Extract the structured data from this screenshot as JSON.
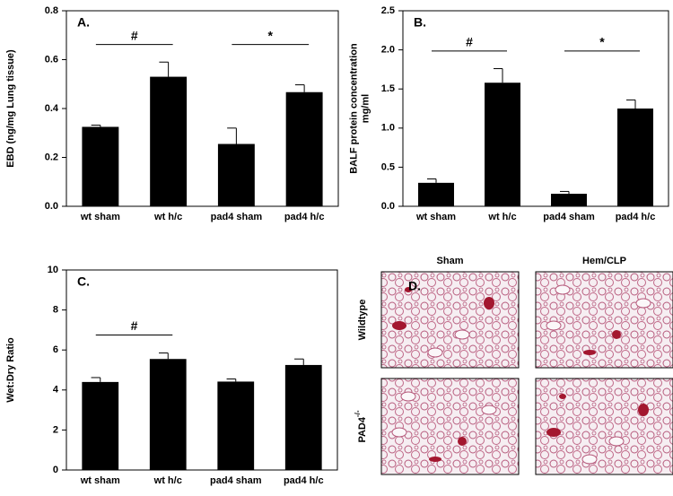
{
  "chart_data": [
    {
      "type": "bar",
      "panel_label": "A.",
      "ylabel": [
        "EBD (ng/mg Lung tissue)"
      ],
      "categories": [
        "wt sham",
        "wt h/c",
        "pad4 sham",
        "pad4 h/c"
      ],
      "series": [
        {
          "color": "#000000",
          "values": [
            0.325,
            0.53,
            0.255,
            0.467
          ],
          "errors": [
            0.007,
            0.06,
            0.065,
            0.03
          ]
        }
      ],
      "ylim": [
        0,
        0.8
      ],
      "yticks": [
        {
          "value": 0,
          "label": "0.0"
        },
        0.2,
        0.4,
        0.6,
        0.8
      ],
      "annotations": [
        {
          "text": "#",
          "span": [
            "wt sham",
            "wt h/c"
          ]
        },
        {
          "text": "*",
          "span": [
            "pad4 sham",
            "pad4 h/c"
          ]
        }
      ]
    },
    {
      "type": "bar",
      "panel_label": "B.",
      "ylabel": [
        "BALF protein concentration",
        "mg/ml"
      ],
      "categories": [
        "wt sham",
        "wt h/c",
        "pad4 sham",
        "pad4 h/c"
      ],
      "series": [
        {
          "color": "#000000",
          "values": [
            0.3,
            1.58,
            0.16,
            1.25
          ],
          "errors": [
            0.05,
            0.18,
            0.03,
            0.11
          ]
        }
      ],
      "ylim": [
        0,
        2.5
      ],
      "yticks": [
        {
          "value": 0,
          "label": "0.0"
        },
        0.5,
        {
          "value": 1,
          "label": "1.0"
        },
        1.5,
        {
          "value": 2,
          "label": "2.0"
        },
        2.5
      ],
      "annotations": [
        {
          "text": "#",
          "span": [
            "wt sham",
            "wt h/c"
          ]
        },
        {
          "text": "*",
          "span": [
            "pad4 sham",
            "pad4 h/c"
          ]
        }
      ]
    },
    {
      "type": "bar",
      "panel_label": "C.",
      "ylabel": [
        "Wet:Dry Ratio"
      ],
      "categories": [
        "wt sham",
        "wt h/c",
        "pad4 sham",
        "pad4 h/c"
      ],
      "series": [
        {
          "color": "#000000",
          "values": [
            4.4,
            5.55,
            4.42,
            5.25
          ],
          "errors": [
            0.22,
            0.3,
            0.13,
            0.3
          ]
        }
      ],
      "ylim": [
        0,
        10
      ],
      "yticks": [
        0,
        2,
        4,
        6,
        8,
        10
      ],
      "annotations": [
        {
          "text": "#",
          "span": [
            "wt sham",
            "wt h/c"
          ]
        }
      ]
    }
  ],
  "histology": {
    "panel_label": "D.",
    "columns": [
      "Sham",
      "Hem/CLP"
    ],
    "rows": [
      {
        "text": "Wildtype"
      },
      {
        "text": "PAD4",
        "superscript": "-/-"
      }
    ]
  }
}
